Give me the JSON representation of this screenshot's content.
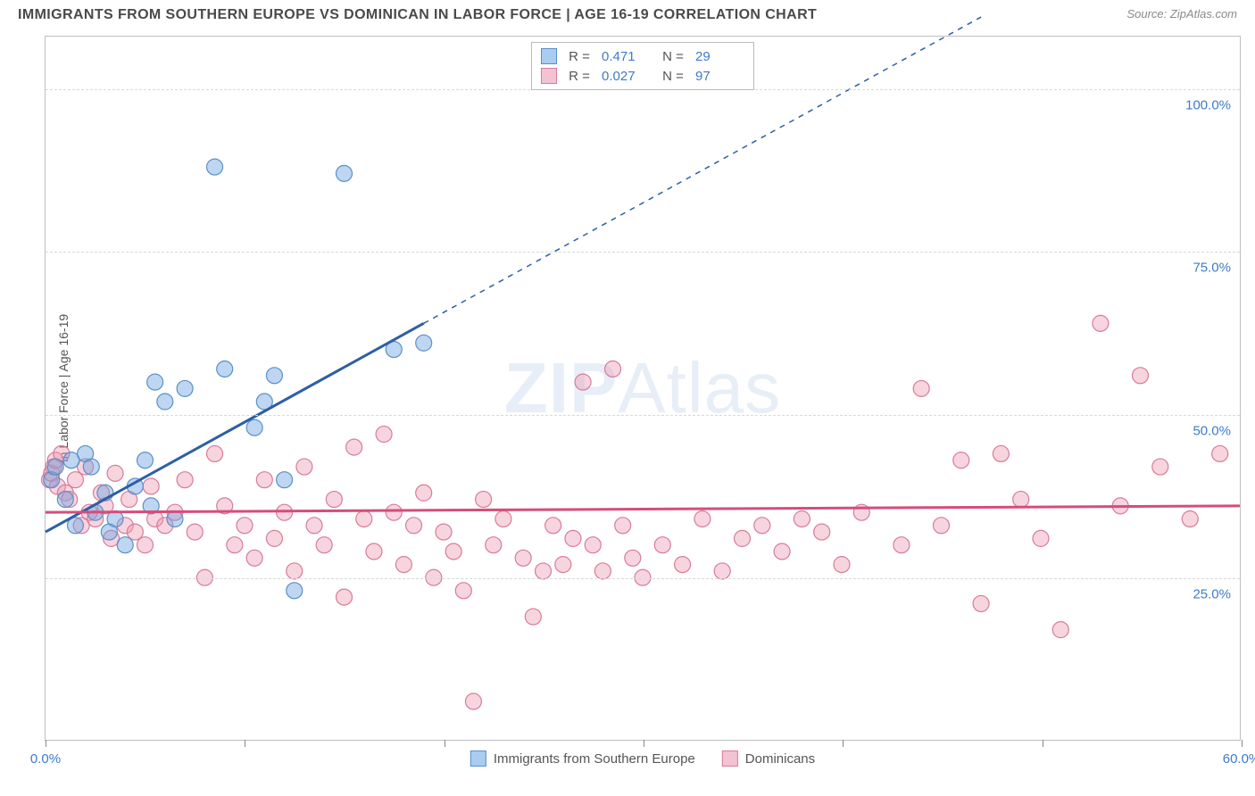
{
  "header": {
    "title": "IMMIGRANTS FROM SOUTHERN EUROPE VS DOMINICAN IN LABOR FORCE | AGE 16-19 CORRELATION CHART",
    "source": "Source: ZipAtlas.com"
  },
  "chart": {
    "type": "scatter",
    "ylabel": "In Labor Force | Age 16-19",
    "watermark": {
      "bold": "ZIP",
      "light": "Atlas"
    },
    "background_color": "#ffffff",
    "border_color": "#bfbfbf",
    "grid_color": "#d9d9d9",
    "axis_label_color": "#3d7cc9",
    "text_color": "#555555",
    "title_fontsize": 16,
    "label_fontsize": 14,
    "tick_fontsize": 15,
    "marker_radius": 9,
    "marker_opacity": 0.55,
    "regression_line_width": 3,
    "xlim": [
      0,
      60
    ],
    "ylim": [
      0,
      108
    ],
    "x_ticks": [
      0,
      10,
      20,
      30,
      40,
      50,
      60
    ],
    "x_tick_labels": {
      "0": "0.0%",
      "60": "60.0%"
    },
    "y_grid": [
      25,
      50,
      75,
      100
    ],
    "y_tick_labels": {
      "25": "25.0%",
      "50": "50.0%",
      "75": "75.0%",
      "100": "100.0%"
    },
    "series": [
      {
        "id": "southern_europe",
        "label": "Immigrants from Southern Europe",
        "color_fill": "rgba(110, 165, 225, 0.45)",
        "color_stroke": "#5a8fc9",
        "swatch_fill": "#a9cdf0",
        "swatch_border": "#5a8fc9",
        "r": "0.471",
        "n": "29",
        "regression": {
          "x1": 0,
          "y1": 32,
          "x2": 19,
          "y2": 64,
          "solid_until_x": 19,
          "dash_to_x": 47,
          "dash_to_y": 111,
          "color": "#2d5fa5"
        },
        "points": [
          [
            0.3,
            40
          ],
          [
            0.5,
            42
          ],
          [
            1.0,
            37
          ],
          [
            1.3,
            43
          ],
          [
            1.5,
            33
          ],
          [
            2.0,
            44
          ],
          [
            2.3,
            42
          ],
          [
            2.5,
            35
          ],
          [
            3.0,
            38
          ],
          [
            3.2,
            32
          ],
          [
            3.5,
            34
          ],
          [
            4.0,
            30
          ],
          [
            4.5,
            39
          ],
          [
            5.0,
            43
          ],
          [
            5.3,
            36
          ],
          [
            5.5,
            55
          ],
          [
            6.0,
            52
          ],
          [
            6.5,
            34
          ],
          [
            7.0,
            54
          ],
          [
            8.5,
            88
          ],
          [
            9.0,
            57
          ],
          [
            10.5,
            48
          ],
          [
            11.0,
            52
          ],
          [
            11.5,
            56
          ],
          [
            12.0,
            40
          ],
          [
            12.5,
            23
          ],
          [
            15.0,
            87
          ],
          [
            17.5,
            60
          ],
          [
            19.0,
            61
          ]
        ]
      },
      {
        "id": "dominicans",
        "label": "Dominicans",
        "color_fill": "rgba(235, 150, 175, 0.40)",
        "color_stroke": "#d97a9a",
        "swatch_fill": "#f4c3d3",
        "swatch_border": "#d97a9a",
        "r": "0.027",
        "n": "97",
        "regression": {
          "x1": 0,
          "y1": 35,
          "x2": 60,
          "y2": 36,
          "solid_until_x": 60,
          "color": "#d54d7a"
        },
        "points": [
          [
            0.2,
            40
          ],
          [
            0.3,
            41
          ],
          [
            0.4,
            42
          ],
          [
            0.5,
            43
          ],
          [
            0.6,
            39
          ],
          [
            0.8,
            44
          ],
          [
            1.0,
            38
          ],
          [
            1.2,
            37
          ],
          [
            1.5,
            40
          ],
          [
            1.8,
            33
          ],
          [
            2.0,
            42
          ],
          [
            2.2,
            35
          ],
          [
            2.5,
            34
          ],
          [
            2.8,
            38
          ],
          [
            3.0,
            36
          ],
          [
            3.3,
            31
          ],
          [
            3.5,
            41
          ],
          [
            4.0,
            33
          ],
          [
            4.2,
            37
          ],
          [
            4.5,
            32
          ],
          [
            5.0,
            30
          ],
          [
            5.3,
            39
          ],
          [
            5.5,
            34
          ],
          [
            6.0,
            33
          ],
          [
            6.5,
            35
          ],
          [
            7.0,
            40
          ],
          [
            7.5,
            32
          ],
          [
            8.0,
            25
          ],
          [
            8.5,
            44
          ],
          [
            9.0,
            36
          ],
          [
            9.5,
            30
          ],
          [
            10.0,
            33
          ],
          [
            10.5,
            28
          ],
          [
            11.0,
            40
          ],
          [
            11.5,
            31
          ],
          [
            12.0,
            35
          ],
          [
            12.5,
            26
          ],
          [
            13.0,
            42
          ],
          [
            13.5,
            33
          ],
          [
            14.0,
            30
          ],
          [
            14.5,
            37
          ],
          [
            15.0,
            22
          ],
          [
            15.5,
            45
          ],
          [
            16.0,
            34
          ],
          [
            16.5,
            29
          ],
          [
            17.0,
            47
          ],
          [
            17.5,
            35
          ],
          [
            18.0,
            27
          ],
          [
            18.5,
            33
          ],
          [
            19.0,
            38
          ],
          [
            19.5,
            25
          ],
          [
            20.0,
            32
          ],
          [
            20.5,
            29
          ],
          [
            21.0,
            23
          ],
          [
            21.5,
            6
          ],
          [
            22.0,
            37
          ],
          [
            22.5,
            30
          ],
          [
            23.0,
            34
          ],
          [
            24.0,
            28
          ],
          [
            24.5,
            19
          ],
          [
            25.0,
            26
          ],
          [
            25.5,
            33
          ],
          [
            26.0,
            27
          ],
          [
            26.5,
            31
          ],
          [
            27.0,
            55
          ],
          [
            27.5,
            30
          ],
          [
            28.0,
            26
          ],
          [
            28.5,
            57
          ],
          [
            29.0,
            33
          ],
          [
            29.5,
            28
          ],
          [
            30.0,
            25
          ],
          [
            31.0,
            30
          ],
          [
            32.0,
            27
          ],
          [
            33.0,
            34
          ],
          [
            34.0,
            26
          ],
          [
            35.0,
            31
          ],
          [
            36.0,
            33
          ],
          [
            37.0,
            29
          ],
          [
            38.0,
            34
          ],
          [
            39.0,
            32
          ],
          [
            40.0,
            27
          ],
          [
            41.0,
            35
          ],
          [
            43.0,
            30
          ],
          [
            44.0,
            54
          ],
          [
            45.0,
            33
          ],
          [
            46.0,
            43
          ],
          [
            47.0,
            21
          ],
          [
            48.0,
            44
          ],
          [
            49.0,
            37
          ],
          [
            50.0,
            31
          ],
          [
            51.0,
            17
          ],
          [
            53.0,
            64
          ],
          [
            54.0,
            36
          ],
          [
            55.0,
            56
          ],
          [
            56.0,
            42
          ],
          [
            57.5,
            34
          ],
          [
            59.0,
            44
          ]
        ]
      }
    ],
    "legend_top_labels": {
      "r": "R  =",
      "n": "N  ="
    },
    "legend_bottom": true
  }
}
